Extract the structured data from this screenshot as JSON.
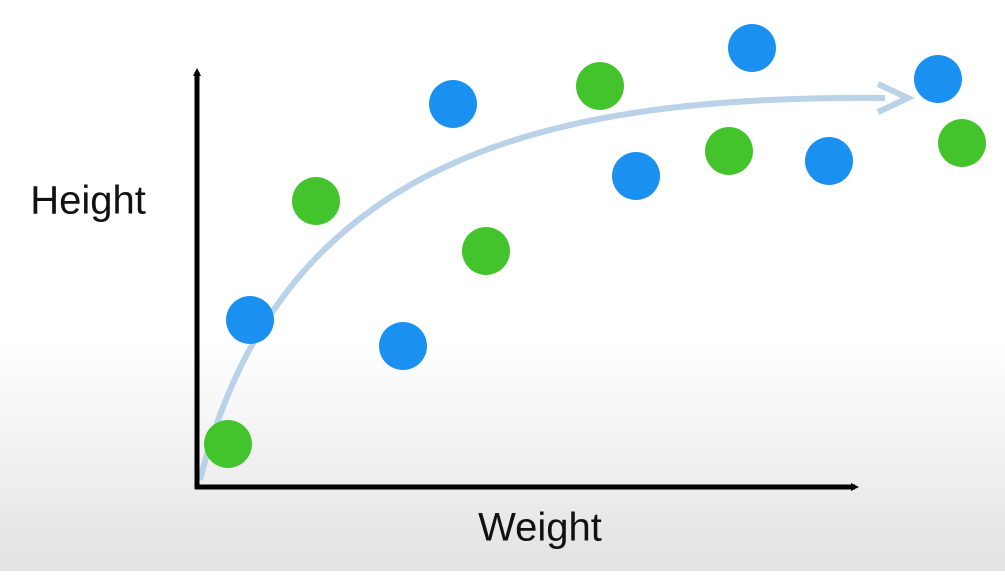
{
  "labels": {
    "y_axis": "Height",
    "x_axis": "Weight"
  }
}
